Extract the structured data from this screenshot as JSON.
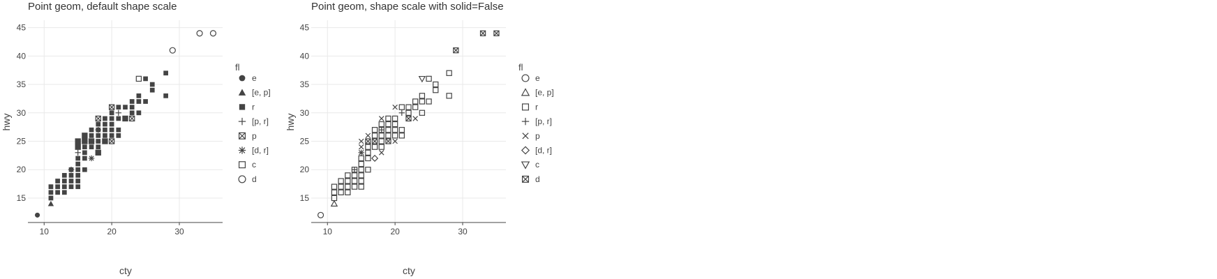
{
  "chart_data": [
    {
      "type": "scatter",
      "title": "Point geom, default shape scale",
      "xlabel": "cty",
      "ylabel": "hwy",
      "xlim": [
        7.6,
        36.4
      ],
      "ylim": [
        10.7,
        46.3
      ],
      "x_ticks": [
        10,
        20,
        30
      ],
      "y_ticks": [
        15,
        20,
        25,
        30,
        35,
        40,
        45
      ],
      "grid": true,
      "solid": true,
      "legend": {
        "title": "fl",
        "position": "right",
        "entries": [
          {
            "label": "e",
            "shape": "circle-filled"
          },
          {
            "label": "[e, p]",
            "shape": "triangle-filled"
          },
          {
            "label": "r",
            "shape": "square-filled"
          },
          {
            "label": "[p, r]",
            "shape": "plus"
          },
          {
            "label": "p",
            "shape": "square-cross"
          },
          {
            "label": "[d, r]",
            "shape": "asterisk"
          },
          {
            "label": "c",
            "shape": "square-open"
          },
          {
            "label": "d",
            "shape": "circle-open"
          }
        ]
      },
      "series": [
        {
          "name": "e",
          "points": [
            [
              9,
              12
            ]
          ]
        },
        {
          "name": "[e, p]",
          "points": [
            [
              11,
              14
            ]
          ]
        },
        {
          "name": "r",
          "points": [
            [
              11,
              15
            ],
            [
              11,
              16
            ],
            [
              11,
              17
            ],
            [
              12,
              16
            ],
            [
              12,
              17
            ],
            [
              12,
              18
            ],
            [
              13,
              16
            ],
            [
              13,
              17
            ],
            [
              13,
              18
            ],
            [
              13,
              19
            ],
            [
              14,
              17
            ],
            [
              14,
              18
            ],
            [
              14,
              19
            ],
            [
              14,
              20
            ],
            [
              15,
              17
            ],
            [
              15,
              18
            ],
            [
              15,
              19
            ],
            [
              15,
              20
            ],
            [
              15,
              21
            ],
            [
              15,
              22
            ],
            [
              15,
              24
            ],
            [
              15,
              25
            ],
            [
              16,
              20
            ],
            [
              16,
              22
            ],
            [
              16,
              23
            ],
            [
              16,
              24
            ],
            [
              16,
              25
            ],
            [
              16,
              26
            ],
            [
              17,
              24
            ],
            [
              17,
              25
            ],
            [
              17,
              26
            ],
            [
              17,
              27
            ],
            [
              18,
              23
            ],
            [
              18,
              24
            ],
            [
              18,
              25
            ],
            [
              18,
              26
            ],
            [
              18,
              27
            ],
            [
              18,
              28
            ],
            [
              19,
              25
            ],
            [
              19,
              26
            ],
            [
              19,
              27
            ],
            [
              19,
              28
            ],
            [
              19,
              29
            ],
            [
              20,
              26
            ],
            [
              20,
              27
            ],
            [
              20,
              28
            ],
            [
              20,
              29
            ],
            [
              20,
              30
            ],
            [
              21,
              26
            ],
            [
              21,
              27
            ],
            [
              21,
              29
            ],
            [
              21,
              31
            ],
            [
              22,
              29
            ],
            [
              22,
              31
            ],
            [
              23,
              30
            ],
            [
              23,
              31
            ],
            [
              23,
              32
            ],
            [
              24,
              30
            ],
            [
              24,
              32
            ],
            [
              24,
              33
            ],
            [
              25,
              32
            ],
            [
              25,
              36
            ],
            [
              26,
              34
            ],
            [
              26,
              35
            ],
            [
              28,
              33
            ],
            [
              28,
              37
            ]
          ]
        },
        {
          "name": "[p, r]",
          "points": [
            [
              14,
              20
            ],
            [
              15,
              23
            ],
            [
              18,
              27
            ],
            [
              21,
              30
            ]
          ]
        },
        {
          "name": "p",
          "points": [
            [
              15,
              24
            ],
            [
              15,
              25
            ],
            [
              16,
              25
            ],
            [
              16,
              26
            ],
            [
              17,
              25
            ],
            [
              18,
              23
            ],
            [
              18,
              29
            ],
            [
              19,
              25
            ],
            [
              20,
              25
            ],
            [
              20,
              31
            ],
            [
              22,
              29
            ],
            [
              23,
              29
            ]
          ]
        },
        {
          "name": "[d, r]",
          "points": [
            [
              17,
              22
            ]
          ]
        },
        {
          "name": "c",
          "points": [
            [
              24,
              36
            ]
          ]
        },
        {
          "name": "d",
          "points": [
            [
              29,
              41
            ],
            [
              33,
              44
            ],
            [
              35,
              44
            ]
          ]
        }
      ]
    },
    {
      "type": "scatter",
      "title": "Point geom, shape scale with solid=False",
      "xlabel": "cty",
      "ylabel": "hwy",
      "xlim": [
        7.6,
        36.4
      ],
      "ylim": [
        10.7,
        46.3
      ],
      "x_ticks": [
        10,
        20,
        30
      ],
      "y_ticks": [
        15,
        20,
        25,
        30,
        35,
        40,
        45
      ],
      "grid": true,
      "solid": false,
      "legend": {
        "title": "fl",
        "position": "right",
        "entries": [
          {
            "label": "e",
            "shape": "circle-open"
          },
          {
            "label": "[e, p]",
            "shape": "triangle-open"
          },
          {
            "label": "r",
            "shape": "square-open"
          },
          {
            "label": "[p, r]",
            "shape": "plus"
          },
          {
            "label": "p",
            "shape": "x"
          },
          {
            "label": "[d, r]",
            "shape": "diamond-open"
          },
          {
            "label": "c",
            "shape": "triangle-down-open"
          },
          {
            "label": "d",
            "shape": "square-cross"
          }
        ]
      },
      "series": [
        {
          "name": "e",
          "points": [
            [
              9,
              12
            ]
          ]
        },
        {
          "name": "[e, p]",
          "points": [
            [
              11,
              14
            ]
          ]
        },
        {
          "name": "r",
          "points": [
            [
              11,
              15
            ],
            [
              11,
              16
            ],
            [
              11,
              17
            ],
            [
              12,
              16
            ],
            [
              12,
              17
            ],
            [
              12,
              18
            ],
            [
              13,
              16
            ],
            [
              13,
              17
            ],
            [
              13,
              18
            ],
            [
              13,
              19
            ],
            [
              14,
              17
            ],
            [
              14,
              18
            ],
            [
              14,
              19
            ],
            [
              14,
              20
            ],
            [
              15,
              17
            ],
            [
              15,
              18
            ],
            [
              15,
              19
            ],
            [
              15,
              20
            ],
            [
              15,
              21
            ],
            [
              15,
              22
            ],
            [
              16,
              20
            ],
            [
              16,
              22
            ],
            [
              16,
              23
            ],
            [
              16,
              24
            ],
            [
              16,
              25
            ],
            [
              17,
              24
            ],
            [
              17,
              25
            ],
            [
              17,
              26
            ],
            [
              17,
              27
            ],
            [
              18,
              24
            ],
            [
              18,
              25
            ],
            [
              18,
              26
            ],
            [
              18,
              27
            ],
            [
              18,
              28
            ],
            [
              19,
              25
            ],
            [
              19,
              26
            ],
            [
              19,
              27
            ],
            [
              19,
              28
            ],
            [
              19,
              29
            ],
            [
              20,
              26
            ],
            [
              20,
              27
            ],
            [
              20,
              28
            ],
            [
              20,
              29
            ],
            [
              21,
              26
            ],
            [
              21,
              27
            ],
            [
              21,
              31
            ],
            [
              22,
              29
            ],
            [
              22,
              30
            ],
            [
              22,
              31
            ],
            [
              23,
              31
            ],
            [
              23,
              32
            ],
            [
              24,
              30
            ],
            [
              24,
              32
            ],
            [
              24,
              33
            ],
            [
              25,
              32
            ],
            [
              25,
              36
            ],
            [
              26,
              34
            ],
            [
              26,
              35
            ],
            [
              28,
              33
            ],
            [
              28,
              37
            ]
          ]
        },
        {
          "name": "[p, r]",
          "points": [
            [
              14,
              20
            ],
            [
              15,
              23
            ],
            [
              18,
              27
            ],
            [
              21,
              30
            ]
          ]
        },
        {
          "name": "p",
          "points": [
            [
              15,
              23
            ],
            [
              15,
              24
            ],
            [
              15,
              25
            ],
            [
              16,
              25
            ],
            [
              16,
              26
            ],
            [
              17,
              25
            ],
            [
              18,
              23
            ],
            [
              18,
              29
            ],
            [
              19,
              25
            ],
            [
              20,
              25
            ],
            [
              20,
              31
            ],
            [
              22,
              29
            ],
            [
              23,
              29
            ]
          ]
        },
        {
          "name": "[d, r]",
          "points": [
            [
              17,
              22
            ]
          ]
        },
        {
          "name": "c",
          "points": [
            [
              24,
              36
            ]
          ]
        },
        {
          "name": "d",
          "points": [
            [
              29,
              41
            ],
            [
              33,
              44
            ],
            [
              35,
              44
            ]
          ]
        }
      ]
    }
  ]
}
